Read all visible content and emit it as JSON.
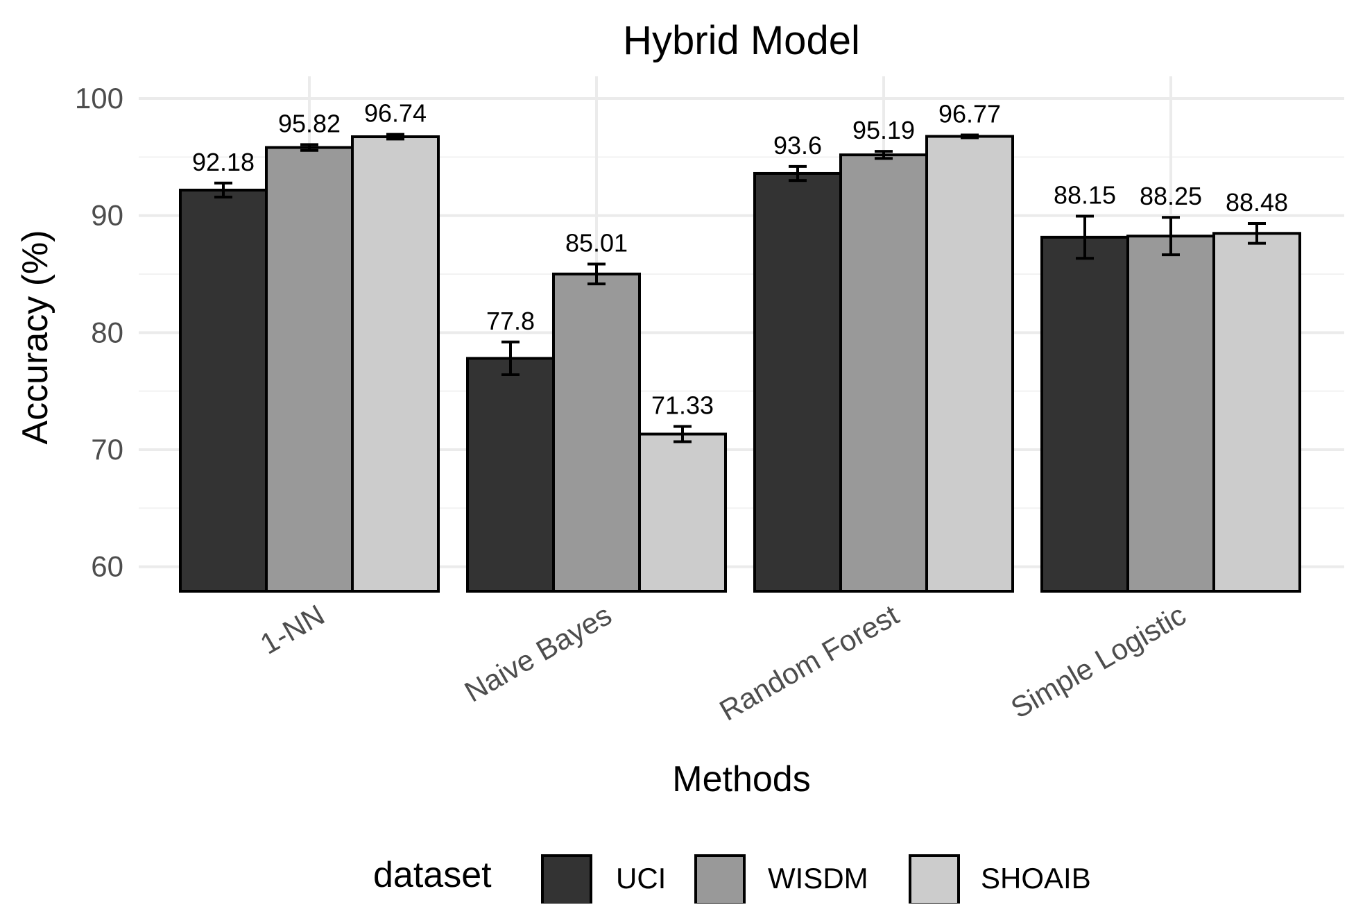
{
  "chart_data": {
    "type": "bar",
    "title": "Hybrid Model",
    "xlabel": "Methods",
    "ylabel": "Accuracy (%)",
    "ylim": [
      57.9,
      101.9
    ],
    "yticks": [
      60,
      70,
      80,
      90,
      100
    ],
    "y_tick_labels": [
      "60",
      "70",
      "80",
      "90",
      "100"
    ],
    "grid": true,
    "categories": [
      "1-NN",
      "Naive Bayes",
      "Random Forest",
      "Simple Logistic"
    ],
    "series": [
      {
        "name": "UCI",
        "color": "#333333",
        "values": [
          92.18,
          77.8,
          93.6,
          88.15
        ],
        "labels": [
          "92.18",
          "77.8",
          "93.6",
          "88.15"
        ],
        "errors": [
          0.6,
          1.4,
          0.6,
          1.8
        ]
      },
      {
        "name": "WISDM",
        "color": "#999999",
        "values": [
          95.82,
          85.01,
          95.19,
          88.25
        ],
        "labels": [
          "95.82",
          "85.01",
          "95.19",
          "88.25"
        ],
        "errors": [
          0.25,
          0.85,
          0.3,
          1.6
        ]
      },
      {
        "name": "SHOAIB",
        "color": "#cccccc",
        "values": [
          96.74,
          71.33,
          96.77,
          88.48
        ],
        "labels": [
          "96.74",
          "71.33",
          "96.77",
          "88.48"
        ],
        "errors": [
          0.2,
          0.65,
          0.12,
          0.85
        ]
      }
    ],
    "legend": {
      "title": "dataset",
      "position": "bottom"
    }
  }
}
